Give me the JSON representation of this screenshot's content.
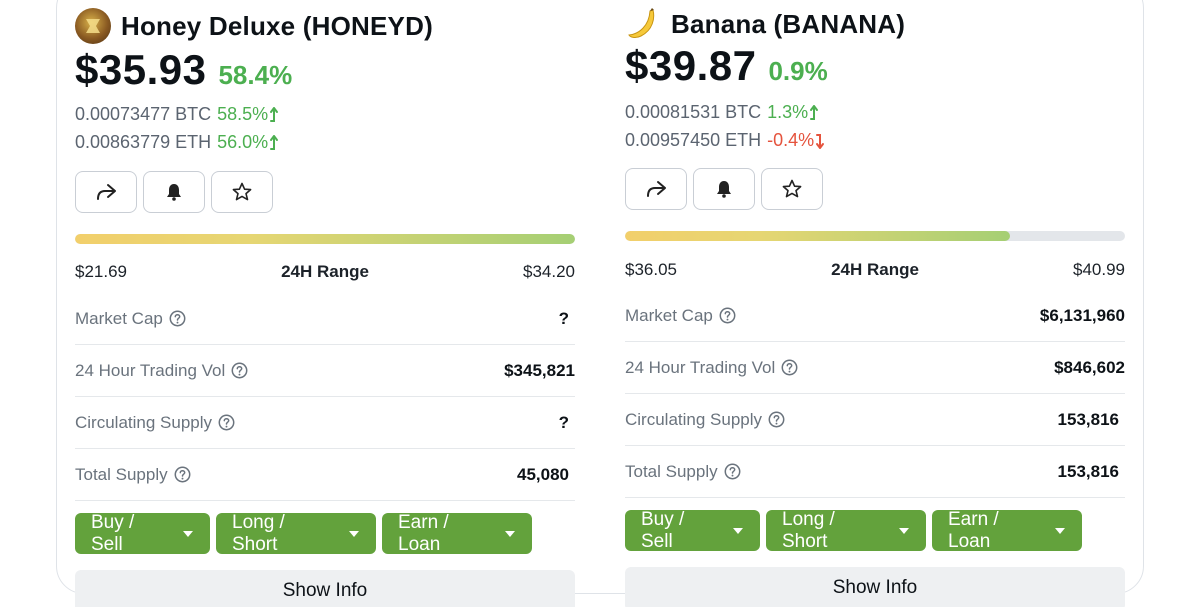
{
  "coins": [
    {
      "name": "Honey Deluxe (HONEYD)",
      "logo_icon": "honey-coin-icon",
      "price": "$35.93",
      "price_change": "58.4%",
      "btc_value": "0.00073477 BTC",
      "btc_change": "58.5%",
      "btc_direction": "up",
      "eth_value": "0.00863779 ETH",
      "eth_change": "56.0%",
      "eth_direction": "up",
      "range_low": "$21.69",
      "range_label": "24H Range",
      "range_high": "$34.20",
      "range_fill": 1.0,
      "stats": [
        {
          "label": "Market Cap",
          "value": "?"
        },
        {
          "label": "24 Hour Trading Vol",
          "value": "$345,821"
        },
        {
          "label": "Circulating Supply",
          "value": "?"
        },
        {
          "label": "Total Supply",
          "value": "45,080"
        }
      ],
      "trade_buttons": [
        "Buy / Sell",
        "Long / Short",
        "Earn / Loan"
      ],
      "show_info": "Show Info"
    },
    {
      "name": "Banana (BANANA)",
      "logo_icon": "banana-icon",
      "price": "$39.87",
      "price_change": "0.9%",
      "btc_value": "0.00081531 BTC",
      "btc_change": "1.3%",
      "btc_direction": "up",
      "eth_value": "0.00957450 ETH",
      "eth_change": "-0.4%",
      "eth_direction": "down",
      "range_low": "$36.05",
      "range_label": "24H Range",
      "range_high": "$40.99",
      "range_fill": 0.77,
      "stats": [
        {
          "label": "Market Cap",
          "value": "$6,131,960"
        },
        {
          "label": "24 Hour Trading Vol",
          "value": "$846,602"
        },
        {
          "label": "Circulating Supply",
          "value": "153,816"
        },
        {
          "label": "Total Supply",
          "value": "153,816"
        }
      ],
      "trade_buttons": [
        "Buy / Sell",
        "Long / Short",
        "Earn / Loan"
      ],
      "show_info": "Show Info"
    }
  ],
  "colors": {
    "positive": "#4caf50",
    "negative": "#e5533d",
    "trade_button": "#63a23c"
  }
}
